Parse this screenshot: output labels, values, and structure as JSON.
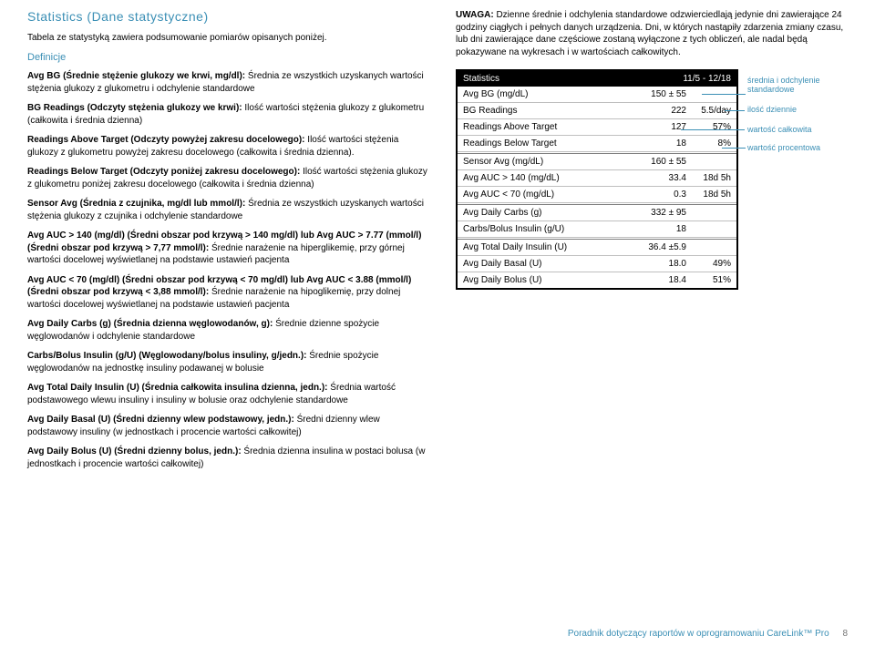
{
  "title": "Statistics (Dane statystyczne)",
  "intro": "Tabela ze statystyką zawiera podsumowanie pomiarów opisanych poniżej.",
  "defTitle": "Definicje",
  "defs": [
    {
      "b": "Avg BG (Średnie stężenie glukozy we krwi, mg/dl):",
      "t": " Średnia ze wszystkich uzyskanych wartości stężenia glukozy z glukometru i odchylenie standardowe"
    },
    {
      "b": "BG Readings (Odczyty stężenia glukozy we krwi):",
      "t": " Ilość wartości stężenia glukozy z glukometru (całkowita i średnia dzienna)"
    },
    {
      "b": "Readings Above Target (Odczyty powyżej zakresu docelowego):",
      "t": " Ilość wartości stężenia glukozy z glukometru powyżej zakresu docelowego (całkowita i średnia dzienna)."
    },
    {
      "b": "Readings Below Target (Odczyty poniżej zakresu docelowego):",
      "t": " Ilość wartości stężenia glukozy z glukometru poniżej zakresu docelowego (całkowita i średnia dzienna)"
    },
    {
      "b": "Sensor Avg (Średnia z czujnika, mg/dl lub mmol/l):",
      "t": " Średnia ze wszystkich uzyskanych wartości stężenia glukozy z czujnika i odchylenie standardowe"
    },
    {
      "b": "Avg AUC > 140 (mg/dl) (Średni obszar pod krzywą > 140 mg/dl) lub Avg AUC > 7.77 (mmol/l) (Średni obszar pod krzywą > 7,77 mmol/l):",
      "t": " Średnie narażenie na hiperglikemię, przy górnej wartości docelowej wyświetlanej na podstawie ustawień pacjenta"
    },
    {
      "b": "Avg AUC < 70 (mg/dl) (Średni obszar pod krzywą < 70 mg/dl) lub Avg AUC < 3.88 (mmol/l) (Średni obszar pod krzywą < 3,88 mmol/l):",
      "t": " Średnie narażenie na hipoglikemię, przy dolnej wartości docelowej wyświetlanej na podstawie ustawień pacjenta"
    },
    {
      "b": "Avg Daily Carbs (g) (Średnia dzienna węglowodanów, g):",
      "t": " Średnie dzienne spożycie węglowodanów i odchylenie standardowe"
    },
    {
      "b": "Carbs/Bolus Insulin (g/U) (Węglowodany/bolus insuliny, g/jedn.):",
      "t": " Średnie spożycie węglowodanów na jednostkę insuliny podawanej w bolusie"
    },
    {
      "b": "Avg Total Daily Insulin (U) (Średnia całkowita insulina dzienna, jedn.):",
      "t": " Średnia wartość podstawowego wlewu insuliny i insuliny w bolusie oraz odchylenie standardowe"
    },
    {
      "b": "Avg Daily Basal (U) (Średni dzienny wlew podstawowy, jedn.):",
      "t": " Średni dzienny wlew podstawowy insuliny (w jednostkach i procencie wartości całkowitej)"
    },
    {
      "b": "Avg Daily Bolus (U) (Średni dzienny bolus, jedn.):",
      "t": " Średnia dzienna insulina w postaci bolusa (w jednostkach i procencie wartości całkowitej)"
    }
  ],
  "noteLabel": "UWAGA:",
  "noteText": " Dzienne średnie i odchylenia standardowe odzwierciedlają jedynie dni zawierające 24 godziny ciągłych i pełnych danych urządzenia. Dni, w których nastąpiły zdarzenia zmiany czasu, lub dni zawierające dane częściowe zostaną wyłączone z tych obliczeń, ale nadal będą pokazywane na wykresach i w wartościach całkowitych.",
  "tableHeader": {
    "left": "Statistics",
    "right": "11/5 - 12/18"
  },
  "rows": [
    {
      "l": "Avg BG (mg/dL)",
      "v": "150 ± 55",
      "x": ""
    },
    {
      "l": "BG Readings",
      "v": "222",
      "x": "5.5/day"
    },
    {
      "l": "Readings Above Target",
      "v": "127",
      "x": "57%"
    },
    {
      "l": "Readings Below Target",
      "v": "18",
      "x": "8%"
    },
    {
      "spacer": true
    },
    {
      "l": "Sensor Avg (mg/dL)",
      "v": "160 ± 55",
      "x": ""
    },
    {
      "l": "Avg AUC > 140 (mg/dL)",
      "v": "33.4",
      "x": "18d 5h"
    },
    {
      "l": "Avg AUC < 70 (mg/dL)",
      "v": "0.3",
      "x": "18d 5h"
    },
    {
      "spacer": true
    },
    {
      "l": "Avg Daily Carbs (g)",
      "v": "332 ± 95",
      "x": ""
    },
    {
      "l": "Carbs/Bolus Insulin (g/U)",
      "v": "18",
      "x": ""
    },
    {
      "spacer": true
    },
    {
      "l": "Avg Total Daily Insulin (U)",
      "v": "36.4 ±5.9",
      "x": ""
    },
    {
      "l": "Avg Daily Basal (U)",
      "v": "18.0",
      "x": "49%"
    },
    {
      "l": "Avg Daily Bolus (U)",
      "v": "18.4",
      "x": "51%"
    }
  ],
  "annots": {
    "a1": "średnia i odchylenie\nstandardowe",
    "a2": "ilość dziennie",
    "a3": "wartość całkowita",
    "a4": "wartość procentowa"
  },
  "footer": "Poradnik dotyczący raportów w oprogramowaniu CareLink™ Pro",
  "pageNum": "8"
}
